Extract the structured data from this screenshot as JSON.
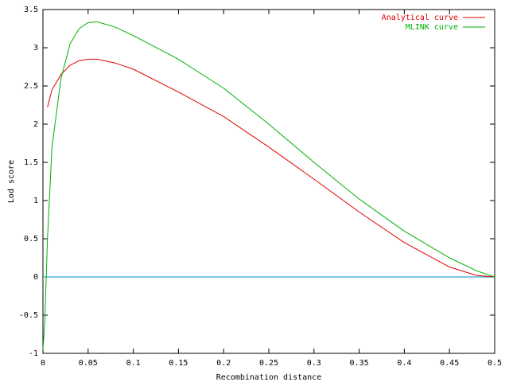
{
  "chart_data": {
    "type": "line",
    "xlabel": "Recombination distance",
    "ylabel": "Lod score",
    "xlim": [
      0,
      0.5
    ],
    "ylim": [
      -1,
      3.5
    ],
    "xticks": [
      0,
      0.05,
      0.1,
      0.15,
      0.2,
      0.25,
      0.3,
      0.35,
      0.4,
      0.45,
      0.5
    ],
    "yticks": [
      -1,
      -0.5,
      0,
      0.5,
      1,
      1.5,
      2,
      2.5,
      3,
      3.5
    ],
    "legend": "top-right",
    "zero_axis_color": "#0090c8",
    "series": [
      {
        "name": "Analytical curve",
        "color": "#e00000",
        "x": [
          0.005,
          0.01,
          0.02,
          0.03,
          0.04,
          0.05,
          0.06,
          0.08,
          0.1,
          0.15,
          0.2,
          0.25,
          0.3,
          0.35,
          0.4,
          0.45,
          0.48,
          0.5
        ],
        "values": [
          2.22,
          2.45,
          2.65,
          2.77,
          2.83,
          2.85,
          2.85,
          2.8,
          2.72,
          2.42,
          2.1,
          1.7,
          1.28,
          0.85,
          0.45,
          0.13,
          0.02,
          0
        ]
      },
      {
        "name": "MLINK curve",
        "color": "#00b000",
        "x": [
          0,
          0.002,
          0.005,
          0.01,
          0.02,
          0.03,
          0.04,
          0.05,
          0.06,
          0.08,
          0.1,
          0.15,
          0.2,
          0.25,
          0.3,
          0.35,
          0.4,
          0.45,
          0.48,
          0.5
        ],
        "values": [
          -0.95,
          -0.6,
          0.5,
          1.7,
          2.6,
          3.05,
          3.25,
          3.33,
          3.34,
          3.27,
          3.16,
          2.85,
          2.47,
          2.0,
          1.5,
          1.02,
          0.6,
          0.25,
          0.08,
          0
        ]
      }
    ]
  }
}
